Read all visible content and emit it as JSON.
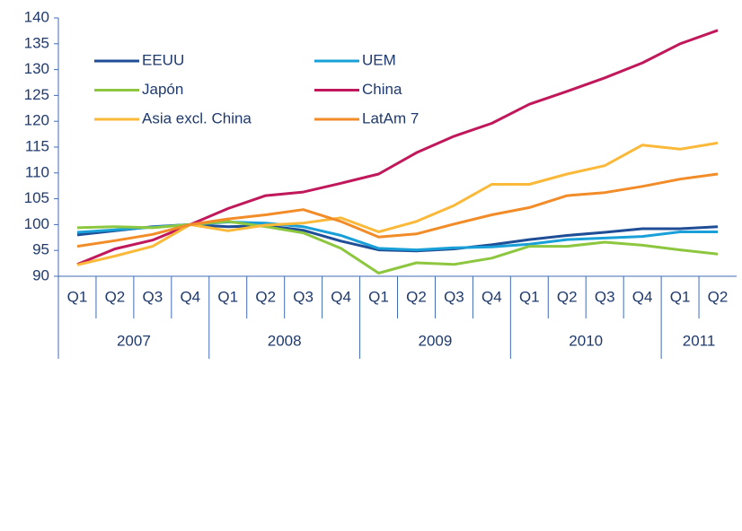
{
  "chart_data": {
    "type": "line",
    "categories": [
      "Q1",
      "Q2",
      "Q3",
      "Q4",
      "Q1",
      "Q2",
      "Q3",
      "Q4",
      "Q1",
      "Q2",
      "Q3",
      "Q4",
      "Q1",
      "Q2",
      "Q3",
      "Q4",
      "Q1",
      "Q2"
    ],
    "years": [
      "2007",
      "2008",
      "2009",
      "2010",
      "2011"
    ],
    "ylim": [
      90,
      140
    ],
    "yticks": [
      90,
      95,
      100,
      105,
      110,
      115,
      120,
      125,
      130,
      135,
      140
    ],
    "grid": false,
    "legend": "upper left",
    "series": [
      {
        "name": "EEUU",
        "color": "#1f4e96",
        "values": [
          98,
          98.8,
          99.6,
          100,
          99.6,
          99.8,
          98.9,
          96.8,
          95.1,
          94.9,
          95.3,
          96.1,
          97.1,
          97.9,
          98.5,
          99.2,
          99.2,
          99.6
        ]
      },
      {
        "name": "UEM",
        "color": "#1aa0d8",
        "values": [
          98.5,
          99,
          99.5,
          100,
          100.5,
          100.3,
          99.6,
          97.9,
          95.4,
          95.1,
          95.5,
          95.7,
          96.2,
          97.1,
          97.4,
          97.7,
          98.6,
          98.6
        ]
      },
      {
        "name": "Japón",
        "color": "#8dc63f",
        "values": [
          99.4,
          99.6,
          99.4,
          100,
          100.6,
          99.6,
          98.4,
          95.4,
          90.6,
          92.6,
          92.3,
          93.5,
          95.8,
          95.8,
          96.6,
          96,
          95.1,
          94.3
        ]
      },
      {
        "name": "China",
        "color": "#c0185a",
        "values": [
          92.3,
          95.3,
          97,
          100,
          103.1,
          105.6,
          106.3,
          108,
          109.8,
          113.9,
          117.1,
          119.6,
          123.3,
          125.8,
          128.4,
          131.3,
          135,
          137.6
        ]
      },
      {
        "name": "Asia excl. China",
        "color": "#fbb93a",
        "values": [
          92.2,
          93.9,
          95.8,
          100,
          98.8,
          99.9,
          100.3,
          101.3,
          98.6,
          100.6,
          103.7,
          107.8,
          107.8,
          109.8,
          111.4,
          115.4,
          114.6,
          115.8
        ]
      },
      {
        "name": "LatAm 7",
        "color": "#f28c28",
        "values": [
          95.8,
          96.9,
          98.1,
          100,
          101.1,
          101.9,
          102.9,
          100.6,
          97.6,
          98.2,
          100.1,
          101.9,
          103.3,
          105.6,
          106.2,
          107.4,
          108.8,
          109.8
        ]
      }
    ]
  }
}
